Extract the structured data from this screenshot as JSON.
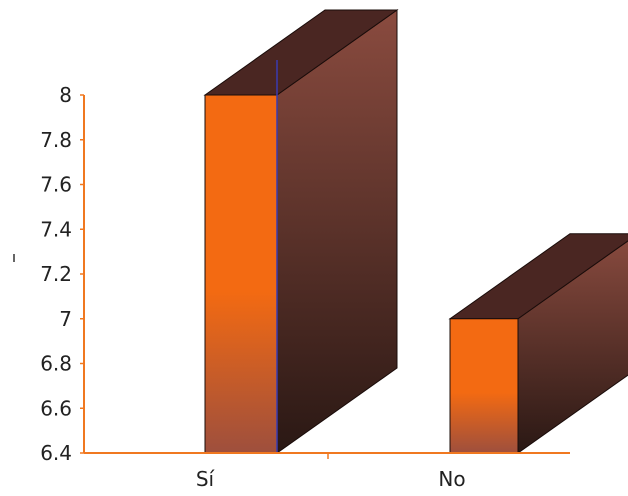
{
  "chart_data": {
    "type": "bar",
    "categories": [
      "Sí",
      "No"
    ],
    "values": [
      8.0,
      7.0
    ],
    "ylim": [
      6.4,
      8.0
    ],
    "y_ticks": [
      "6.4",
      "6.6",
      "6.8",
      "7",
      "7.2",
      "7.4",
      "7.6",
      "7.8",
      "8"
    ],
    "grid": false,
    "style": "3d-bar",
    "colors": {
      "axis": "#f07820",
      "bar_front_top": "#f36a12",
      "bar_front_bottom": "#9e4f3d",
      "bar_top": "#4a2622",
      "bar_side_light": "#8a4b3f",
      "bar_side_dark": "#2a1814",
      "edge": "#1a0c0a",
      "highlight_line": "#3a3ab0"
    }
  }
}
